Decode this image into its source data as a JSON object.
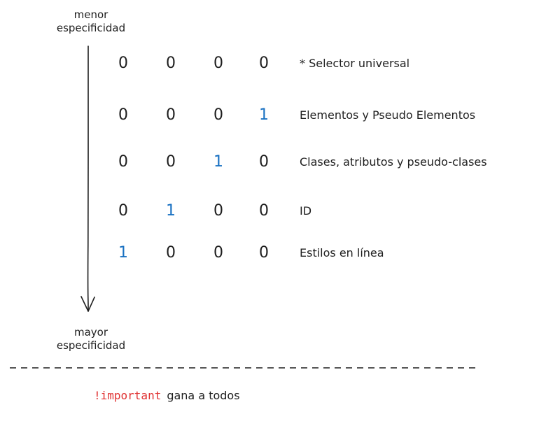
{
  "labels": {
    "top": "menor\nespecificidad",
    "bottom": "mayor\nespecificidad"
  },
  "rows": [
    {
      "digits": [
        "0",
        "0",
        "0",
        "0"
      ],
      "highlight": -1,
      "description": "* Selector universal"
    },
    {
      "digits": [
        "0",
        "0",
        "0",
        "1"
      ],
      "highlight": 3,
      "description": "Elementos y Pseudo Elementos"
    },
    {
      "digits": [
        "0",
        "0",
        "1",
        "0"
      ],
      "highlight": 2,
      "description": "Clases, atributos y pseudo-clases"
    },
    {
      "digits": [
        "0",
        "1",
        "0",
        "0"
      ],
      "highlight": 1,
      "description": "ID"
    },
    {
      "digits": [
        "1",
        "0",
        "0",
        "0"
      ],
      "highlight": 0,
      "description": "Estilos en línea"
    }
  ],
  "important": {
    "keyword": "!important",
    "text": "gana a todos"
  },
  "colors": {
    "text": "#1e1e1e",
    "highlight": "#1971c2",
    "keyword": "#e03131"
  },
  "icons": {
    "arrow": "arrow-down-icon",
    "separator": "dashed-separator"
  }
}
